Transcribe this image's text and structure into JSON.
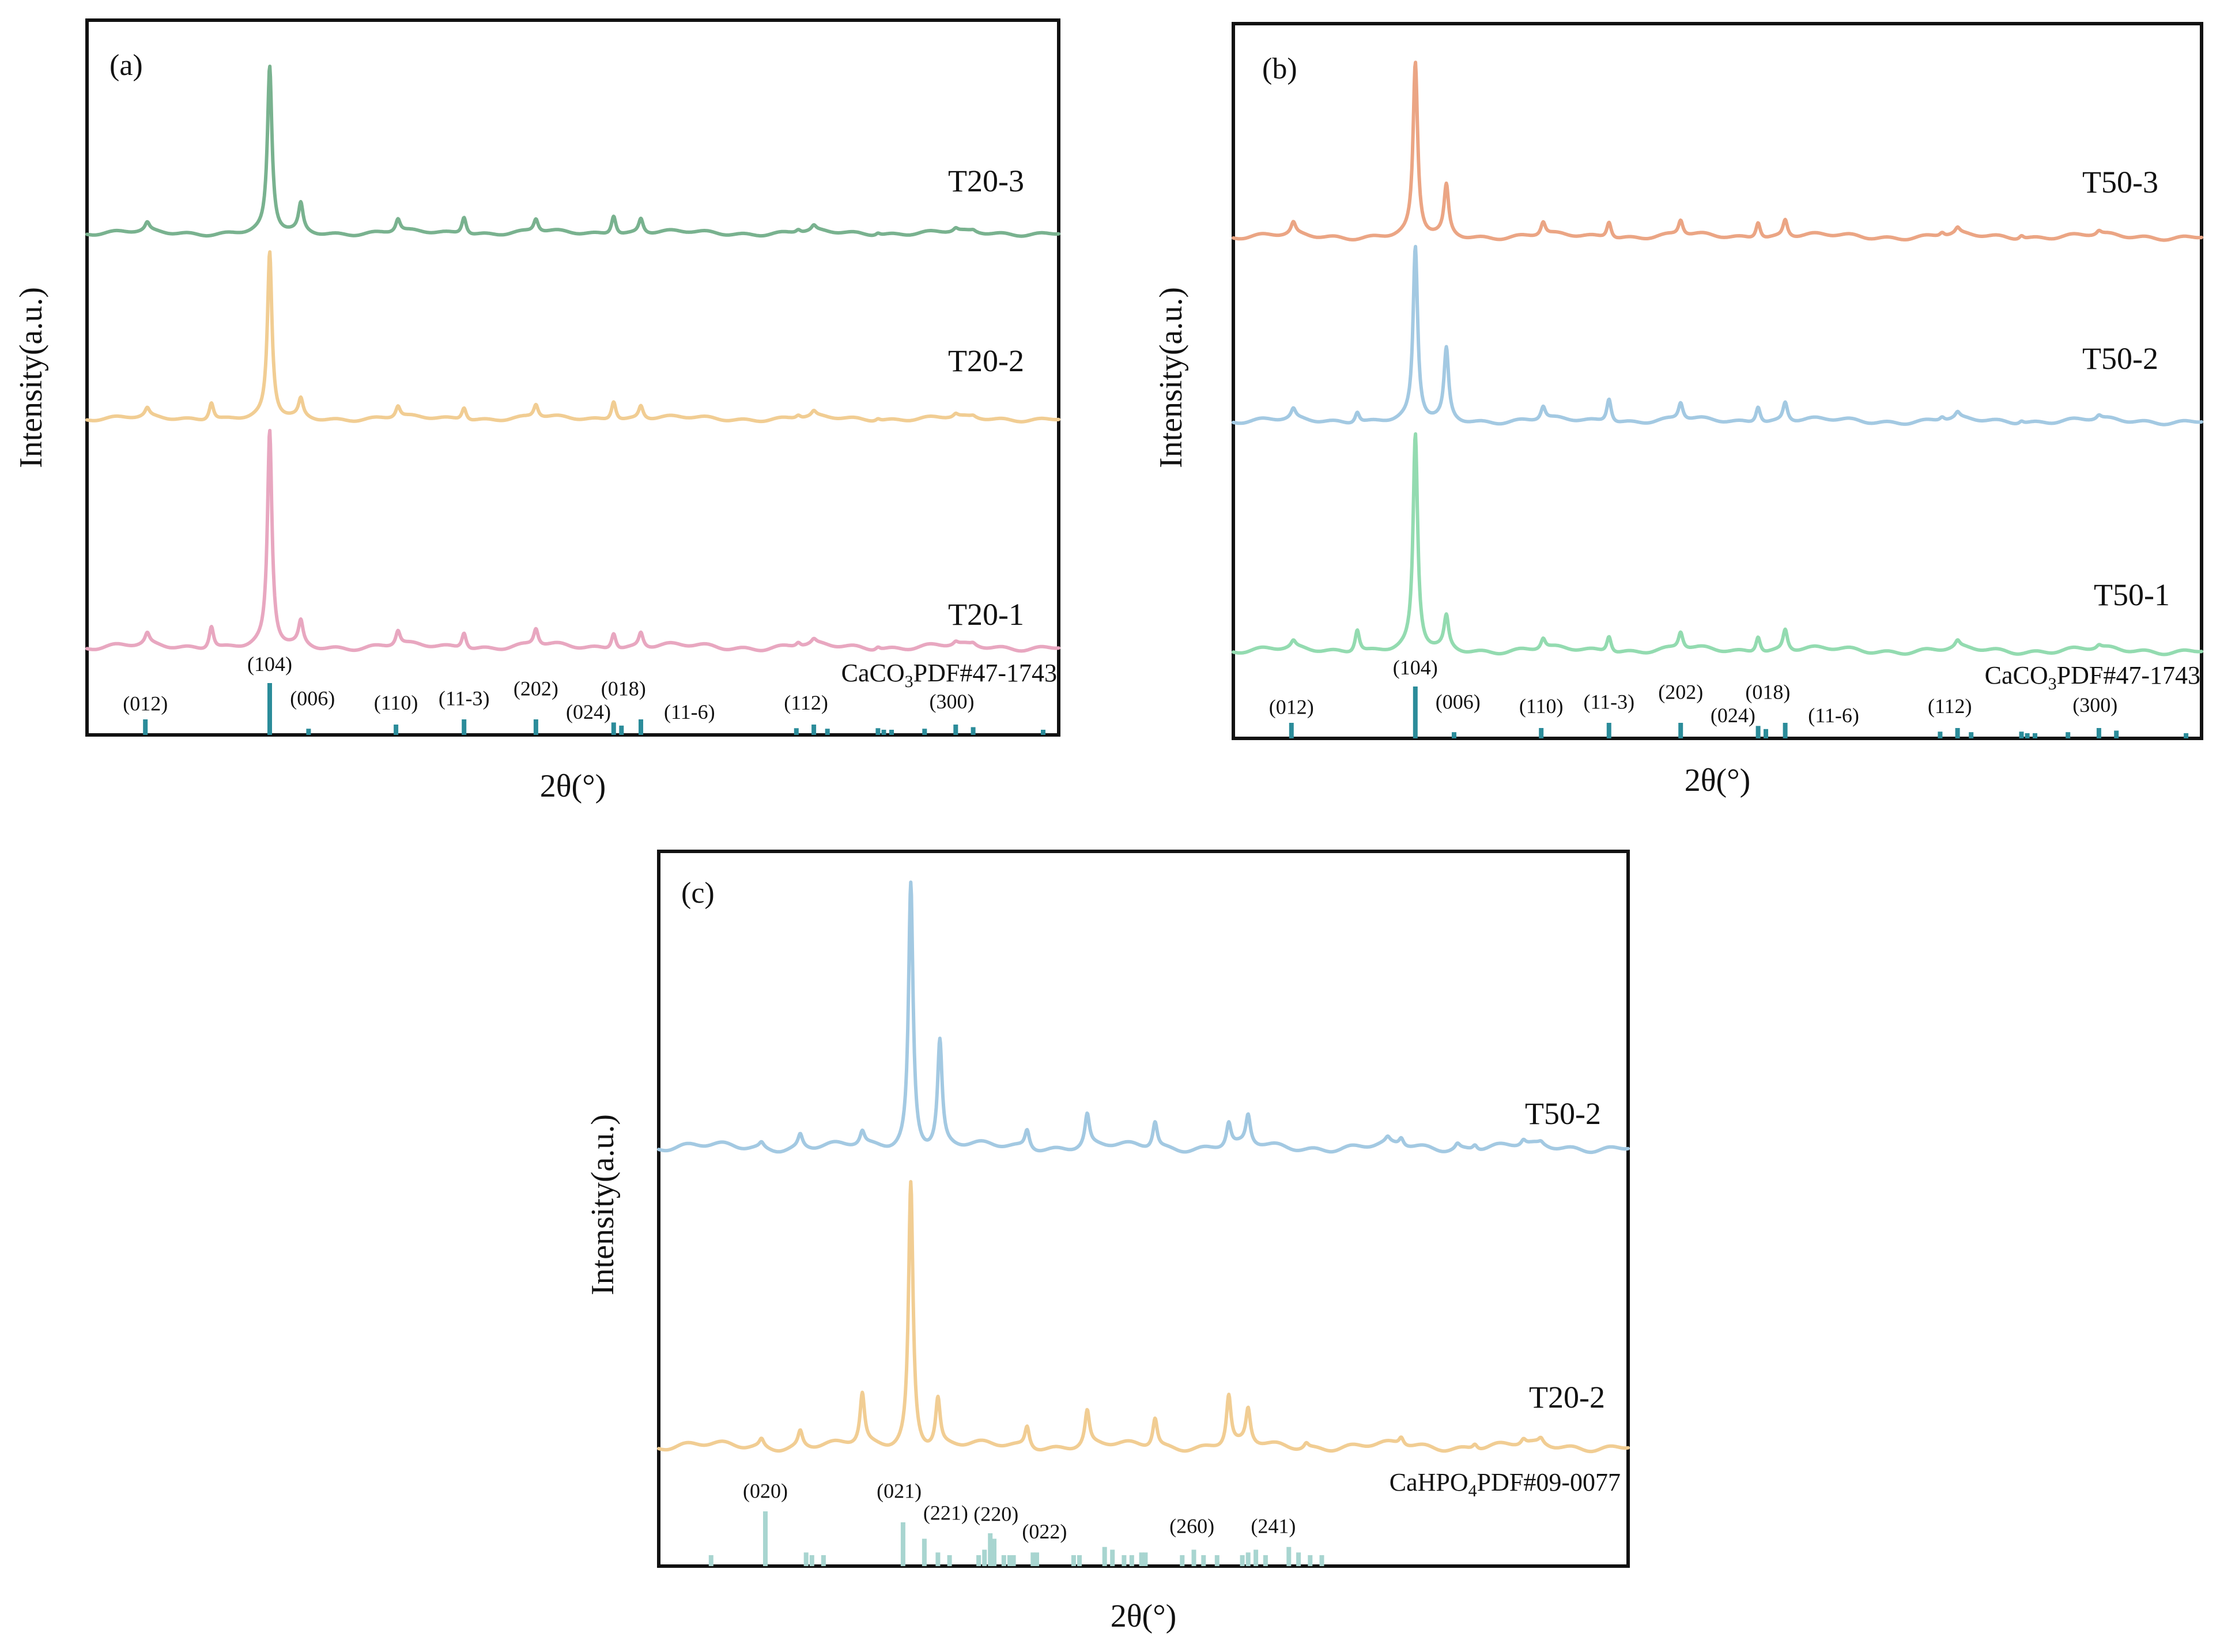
{
  "chart_data": [
    {
      "type": "line",
      "panel_label": "(a)",
      "xlabel": "2θ(°)",
      "ylabel": "Intensity(a.u.)",
      "x_domain": [
        20,
        70
      ],
      "ticks_shown": false,
      "colors": [
        "#e8a7c0",
        "#f1cd93",
        "#79b28f"
      ],
      "series": [
        {
          "name": "T20-1",
          "color": "#e8a7c0",
          "offset": 0,
          "peaks": [
            [
              23.1,
              0.05
            ],
            [
              26.4,
              0.11
            ],
            [
              29.4,
              1.0
            ],
            [
              31.0,
              0.11
            ],
            [
              36.0,
              0.07
            ],
            [
              39.4,
              0.08
            ],
            [
              43.1,
              0.08
            ],
            [
              47.1,
              0.08
            ],
            [
              48.5,
              0.07
            ],
            [
              56.6,
              0.02
            ],
            [
              57.4,
              0.02
            ],
            [
              60.7,
              0.015
            ],
            [
              64.7,
              0.015
            ],
            [
              65.6,
              0.01
            ]
          ]
        },
        {
          "name": "T20-2",
          "color": "#f1cd93",
          "offset": 1,
          "peaks": [
            [
              23.1,
              0.05
            ],
            [
              26.4,
              0.11
            ],
            [
              29.4,
              1.0
            ],
            [
              31.0,
              0.11
            ],
            [
              36.0,
              0.07
            ],
            [
              39.4,
              0.08
            ],
            [
              43.1,
              0.08
            ],
            [
              47.1,
              0.12
            ],
            [
              48.5,
              0.08
            ],
            [
              56.6,
              0.02
            ],
            [
              57.4,
              0.03
            ],
            [
              60.7,
              0.015
            ],
            [
              64.7,
              0.02
            ],
            [
              65.6,
              0.01
            ]
          ]
        },
        {
          "name": "T20-3",
          "color": "#79b28f",
          "offset": 2,
          "peaks": [
            [
              23.1,
              0.05
            ],
            [
              29.4,
              1.0
            ],
            [
              31.0,
              0.17
            ],
            [
              36.0,
              0.08
            ],
            [
              39.4,
              0.11
            ],
            [
              43.1,
              0.08
            ],
            [
              47.1,
              0.12
            ],
            [
              48.5,
              0.09
            ],
            [
              56.6,
              0.02
            ],
            [
              57.4,
              0.03
            ],
            [
              60.7,
              0.015
            ],
            [
              64.7,
              0.02
            ],
            [
              65.6,
              0.01
            ]
          ]
        }
      ],
      "reference": {
        "label_prefix": "CaCO",
        "label_sub": "3",
        "label_suffix": "PDF#47-1743",
        "color": "#2b8c9a",
        "lines": [
          [
            23.0,
            0.3
          ],
          [
            29.4,
            1.0
          ],
          [
            31.4,
            0.12
          ],
          [
            35.9,
            0.2
          ],
          [
            39.4,
            0.3
          ],
          [
            43.1,
            0.3
          ],
          [
            47.1,
            0.24
          ],
          [
            47.5,
            0.18
          ],
          [
            48.5,
            0.3
          ],
          [
            56.5,
            0.13
          ],
          [
            57.4,
            0.2
          ],
          [
            58.1,
            0.12
          ],
          [
            60.7,
            0.13
          ],
          [
            61.0,
            0.1
          ],
          [
            61.4,
            0.1
          ],
          [
            63.1,
            0.12
          ],
          [
            64.7,
            0.2
          ],
          [
            65.6,
            0.15
          ],
          [
            69.2,
            0.1
          ]
        ],
        "hkl_labels": [
          {
            "text": "(012)",
            "x": 23.0,
            "y_frac": 0.36
          },
          {
            "text": "(104)",
            "x": 29.4,
            "y_frac": 1.12
          },
          {
            "text": "(006)",
            "x": 31.6,
            "y_frac": 0.46
          },
          {
            "text": "(110)",
            "x": 35.9,
            "y_frac": 0.38
          },
          {
            "text": "(11-3)",
            "x": 39.4,
            "y_frac": 0.46
          },
          {
            "text": "(202)",
            "x": 43.1,
            "y_frac": 0.65
          },
          {
            "text": "(024)",
            "x": 45.8,
            "y_frac": 0.2
          },
          {
            "text": "(018)",
            "x": 47.6,
            "y_frac": 0.65
          },
          {
            "text": "(11-6)",
            "x": 51.0,
            "y_frac": 0.2
          },
          {
            "text": "(112)",
            "x": 57.0,
            "y_frac": 0.38
          },
          {
            "text": "(300)",
            "x": 64.5,
            "y_frac": 0.4
          }
        ]
      }
    },
    {
      "type": "line",
      "panel_label": "(b)",
      "xlabel": "2θ(°)",
      "ylabel": "Intensity(a.u.)",
      "x_domain": [
        20,
        70
      ],
      "ticks_shown": false,
      "colors": [
        "#93dbb0",
        "#a3c9e2",
        "#eba584"
      ],
      "series": [
        {
          "name": "T50-1",
          "color": "#93dbb0",
          "offset": 0,
          "peaks": [
            [
              23.1,
              0.03
            ],
            [
              26.4,
              0.11
            ],
            [
              29.4,
              1.0
            ],
            [
              31.0,
              0.15
            ],
            [
              36.0,
              0.05
            ],
            [
              39.4,
              0.08
            ],
            [
              43.1,
              0.08
            ],
            [
              47.1,
              0.08
            ],
            [
              48.5,
              0.1
            ],
            [
              57.4,
              0.03
            ],
            [
              64.7,
              0.015
            ]
          ]
        },
        {
          "name": "T50-2",
          "color": "#a3c9e2",
          "offset": 1,
          "peaks": [
            [
              23.1,
              0.05
            ],
            [
              26.4,
              0.06
            ],
            [
              29.4,
              0.9
            ],
            [
              31.0,
              0.37
            ],
            [
              36.0,
              0.07
            ],
            [
              39.4,
              0.13
            ],
            [
              43.1,
              0.09
            ],
            [
              47.1,
              0.09
            ],
            [
              48.5,
              0.1
            ],
            [
              56.6,
              0.02
            ],
            [
              57.4,
              0.03
            ],
            [
              60.7,
              0.015
            ],
            [
              64.7,
              0.02
            ]
          ]
        },
        {
          "name": "T50-3",
          "color": "#eba584",
          "offset": 2,
          "peaks": [
            [
              23.1,
              0.06
            ],
            [
              29.4,
              0.9
            ],
            [
              31.0,
              0.26
            ],
            [
              36.0,
              0.07
            ],
            [
              39.4,
              0.09
            ],
            [
              43.1,
              0.08
            ],
            [
              47.1,
              0.09
            ],
            [
              48.5,
              0.09
            ],
            [
              56.6,
              0.02
            ],
            [
              57.4,
              0.03
            ],
            [
              60.7,
              0.02
            ],
            [
              64.7,
              0.02
            ]
          ]
        }
      ],
      "reference": {
        "label_prefix": "CaCO",
        "label_sub": "3",
        "label_suffix": "PDF#47-1743",
        "color": "#2b8c9a",
        "lines": [
          [
            23.0,
            0.3
          ],
          [
            29.4,
            1.0
          ],
          [
            31.4,
            0.12
          ],
          [
            35.9,
            0.2
          ],
          [
            39.4,
            0.3
          ],
          [
            43.1,
            0.3
          ],
          [
            47.1,
            0.24
          ],
          [
            47.5,
            0.18
          ],
          [
            48.5,
            0.3
          ],
          [
            56.5,
            0.13
          ],
          [
            57.4,
            0.2
          ],
          [
            58.1,
            0.12
          ],
          [
            60.7,
            0.13
          ],
          [
            61.0,
            0.1
          ],
          [
            61.4,
            0.1
          ],
          [
            63.1,
            0.12
          ],
          [
            64.7,
            0.2
          ],
          [
            65.6,
            0.15
          ],
          [
            69.2,
            0.1
          ]
        ],
        "hkl_labels": [
          {
            "text": "(012)",
            "x": 23.0,
            "y_frac": 0.36
          },
          {
            "text": "(104)",
            "x": 29.4,
            "y_frac": 1.12
          },
          {
            "text": "(006)",
            "x": 31.6,
            "y_frac": 0.46
          },
          {
            "text": "(110)",
            "x": 35.9,
            "y_frac": 0.38
          },
          {
            "text": "(11-3)",
            "x": 39.4,
            "y_frac": 0.46
          },
          {
            "text": "(202)",
            "x": 43.1,
            "y_frac": 0.65
          },
          {
            "text": "(024)",
            "x": 45.8,
            "y_frac": 0.2
          },
          {
            "text": "(018)",
            "x": 47.6,
            "y_frac": 0.65
          },
          {
            "text": "(11-6)",
            "x": 51.0,
            "y_frac": 0.2
          },
          {
            "text": "(112)",
            "x": 57.0,
            "y_frac": 0.38
          },
          {
            "text": "(300)",
            "x": 64.5,
            "y_frac": 0.4
          }
        ]
      }
    },
    {
      "type": "line",
      "panel_label": "(c)",
      "xlabel": "2θ(°)",
      "ylabel": "Intensity(a.u.)",
      "x_domain": [
        20,
        70
      ],
      "ticks_shown": false,
      "colors": [
        "#f1cd93",
        "#a3c9e2"
      ],
      "series": [
        {
          "name": "T20-2",
          "color": "#f1cd93",
          "offset": 0,
          "peaks": [
            [
              25.3,
              0.03
            ],
            [
              27.3,
              0.06
            ],
            [
              30.5,
              0.19
            ],
            [
              33.0,
              1.0
            ],
            [
              34.4,
              0.18
            ],
            [
              39.0,
              0.08
            ],
            [
              42.1,
              0.13
            ],
            [
              45.6,
              0.11
            ],
            [
              49.4,
              0.19
            ],
            [
              50.4,
              0.13
            ],
            [
              53.4,
              0.02
            ],
            [
              58.3,
              0.03
            ],
            [
              62.1,
              0.02
            ],
            [
              64.6,
              0.02
            ],
            [
              65.5,
              0.02
            ]
          ]
        },
        {
          "name": "T50-2",
          "color": "#a3c9e2",
          "offset": 1,
          "peaks": [
            [
              25.3,
              0.02
            ],
            [
              27.3,
              0.05
            ],
            [
              30.5,
              0.05
            ],
            [
              33.0,
              1.0
            ],
            [
              34.5,
              0.4
            ],
            [
              39.0,
              0.07
            ],
            [
              42.1,
              0.12
            ],
            [
              45.6,
              0.1
            ],
            [
              49.4,
              0.09
            ],
            [
              50.4,
              0.11
            ],
            [
              57.6,
              0.02
            ],
            [
              58.3,
              0.03
            ],
            [
              61.2,
              0.02
            ],
            [
              62.1,
              0.02
            ],
            [
              64.6,
              0.02
            ],
            [
              65.5,
              0.01
            ]
          ]
        }
      ],
      "reference": {
        "label_prefix": "CaHPO",
        "label_sub": "4",
        "label_suffix": "PDF#09-0077",
        "color": "#a8d5d0",
        "lines": [
          [
            22.7,
            0.2
          ],
          [
            25.5,
            1.0
          ],
          [
            27.6,
            0.25
          ],
          [
            27.9,
            0.2
          ],
          [
            28.5,
            0.2
          ],
          [
            32.6,
            0.8
          ],
          [
            33.7,
            0.5
          ],
          [
            34.4,
            0.25
          ],
          [
            35.0,
            0.2
          ],
          [
            36.5,
            0.2
          ],
          [
            36.8,
            0.3
          ],
          [
            37.1,
            0.6
          ],
          [
            37.3,
            0.5
          ],
          [
            37.8,
            0.2
          ],
          [
            38.1,
            0.2
          ],
          [
            38.3,
            0.2
          ],
          [
            39.3,
            0.25
          ],
          [
            39.5,
            0.25
          ],
          [
            41.4,
            0.2
          ],
          [
            41.7,
            0.2
          ],
          [
            43.0,
            0.35
          ],
          [
            43.4,
            0.3
          ],
          [
            44.0,
            0.2
          ],
          [
            44.4,
            0.2
          ],
          [
            44.9,
            0.25
          ],
          [
            45.1,
            0.25
          ],
          [
            47.0,
            0.2
          ],
          [
            47.6,
            0.3
          ],
          [
            48.1,
            0.2
          ],
          [
            48.8,
            0.2
          ],
          [
            50.1,
            0.2
          ],
          [
            50.4,
            0.25
          ],
          [
            50.8,
            0.3
          ],
          [
            51.3,
            0.2
          ],
          [
            52.5,
            0.35
          ],
          [
            53.0,
            0.25
          ],
          [
            53.6,
            0.2
          ],
          [
            54.2,
            0.2
          ]
        ],
        "hkl_labels": [
          {
            "text": "(020)",
            "x": 25.5,
            "y_frac": 1.14
          },
          {
            "text": "(021)",
            "x": 32.4,
            "y_frac": 1.14
          },
          {
            "text": "(221)",
            "x": 34.8,
            "y_frac": 0.74
          },
          {
            "text": "(220)",
            "x": 37.4,
            "y_frac": 0.72
          },
          {
            "text": "(022)",
            "x": 39.9,
            "y_frac": 0.4
          },
          {
            "text": "(260)",
            "x": 47.5,
            "y_frac": 0.5
          },
          {
            "text": "(241)",
            "x": 51.7,
            "y_frac": 0.5
          }
        ]
      }
    }
  ]
}
